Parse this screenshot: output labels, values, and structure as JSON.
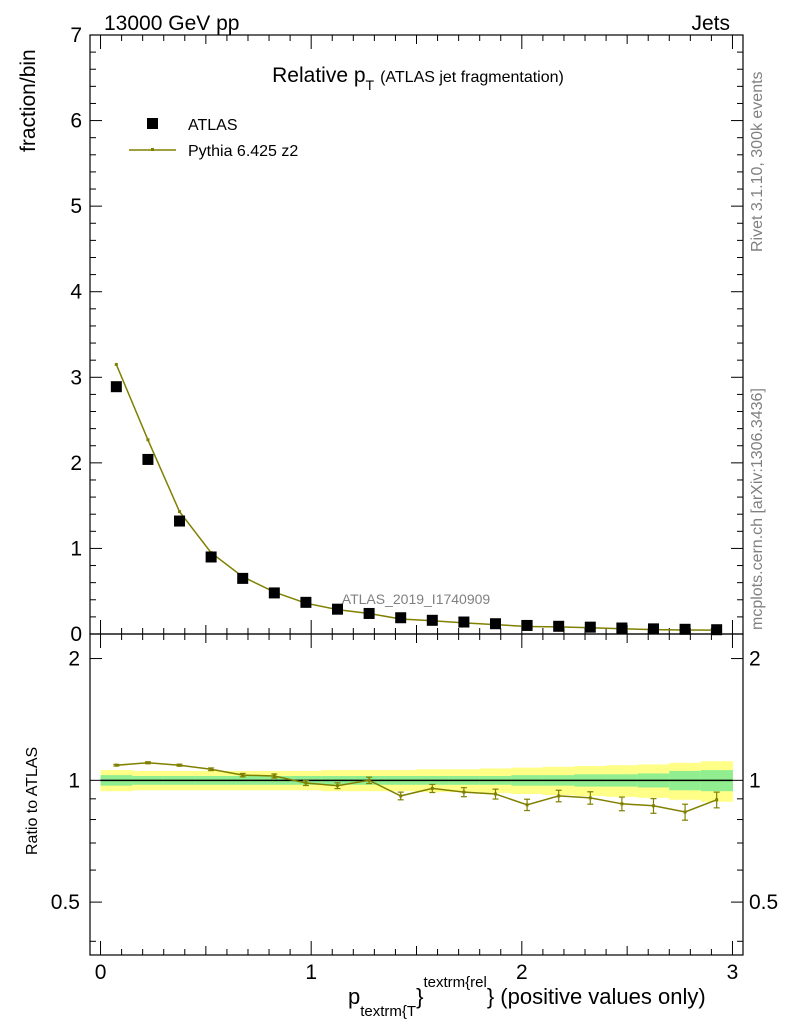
{
  "header": {
    "left": "13000 GeV pp",
    "right": "Jets"
  },
  "plot": {
    "title_main": "Relative p",
    "title_sub": "T",
    "title_rest": "(ATLAS jet fragmentation)",
    "ylabel": "fraction/bin",
    "analysis_tag": "ATLAS_2019_I1740909",
    "side_label_top": "Rivet 3.1.10,  300k events",
    "side_label_bottom": "mcplots.cern.ch [arXiv:1306.3436]",
    "legend": {
      "data_label": "ATLAS",
      "mc_label": "Pythia 6.425 z2"
    },
    "xlabel_p": "p",
    "xlabel_sub": "textrm{T",
    "xlabel_brace1": "}",
    "xlabel_sup": "textrm{rel",
    "xlabel_rest": "} (positive values only)",
    "ratio_ylabel": "Ratio to ATLAS"
  },
  "colors": {
    "mc": "#808000",
    "band_inner": "#90ee90",
    "band_outer": "#ffff88",
    "data": "#000000"
  },
  "chart_data": [
    {
      "type": "scatter",
      "title": "Relative pT (ATLAS jet fragmentation)",
      "ylabel": "fraction/bin",
      "xlim": [
        -0.05,
        3.05
      ],
      "ylim": [
        0,
        7
      ],
      "yticks": [
        0,
        1,
        2,
        3,
        4,
        5,
        6,
        7
      ],
      "legend_position": "top-left",
      "x": [
        0.075,
        0.225,
        0.375,
        0.525,
        0.675,
        0.825,
        0.975,
        1.125,
        1.275,
        1.425,
        1.575,
        1.725,
        1.875,
        2.025,
        2.175,
        2.325,
        2.475,
        2.625,
        2.775,
        2.925
      ],
      "series": [
        {
          "name": "ATLAS",
          "style": "markers",
          "values": [
            2.89,
            2.04,
            1.32,
            0.9,
            0.65,
            0.48,
            0.37,
            0.29,
            0.24,
            0.19,
            0.16,
            0.14,
            0.12,
            0.1,
            0.09,
            0.08,
            0.07,
            0.06,
            0.055,
            0.05
          ]
        },
        {
          "name": "Pythia 6.425 z2",
          "style": "line",
          "values": [
            3.15,
            2.27,
            1.43,
            0.95,
            0.67,
            0.49,
            0.36,
            0.285,
            0.24,
            0.175,
            0.155,
            0.13,
            0.11,
            0.088,
            0.083,
            0.073,
            0.062,
            0.052,
            0.047,
            0.046
          ]
        }
      ]
    },
    {
      "type": "line",
      "ylabel": "Ratio to ATLAS",
      "xlabel": "p_T^rel (positive values only)",
      "xlim": [
        -0.05,
        3.05
      ],
      "xticks": [
        0,
        1,
        2,
        3
      ],
      "ylim": [
        0.37,
        2.3
      ],
      "yticks": [
        0.5,
        1,
        2
      ],
      "log_y": true,
      "x": [
        0.075,
        0.225,
        0.375,
        0.525,
        0.675,
        0.825,
        0.975,
        1.125,
        1.275,
        1.425,
        1.575,
        1.725,
        1.875,
        2.025,
        2.175,
        2.325,
        2.475,
        2.625,
        2.775,
        2.925
      ],
      "series": [
        {
          "name": "Pythia 6.425 z2",
          "values": [
            1.09,
            1.105,
            1.09,
            1.065,
            1.03,
            1.025,
            0.985,
            0.97,
            1.0,
            0.915,
            0.955,
            0.935,
            0.925,
            0.87,
            0.915,
            0.905,
            0.875,
            0.865,
            0.835,
            0.895
          ],
          "errors": [
            0.005,
            0.006,
            0.006,
            0.008,
            0.01,
            0.012,
            0.014,
            0.016,
            0.018,
            0.02,
            0.022,
            0.024,
            0.026,
            0.028,
            0.03,
            0.032,
            0.034,
            0.036,
            0.038,
            0.04
          ]
        }
      ],
      "band_inner_halfwidth": [
        0.03,
        0.025,
        0.025,
        0.025,
        0.025,
        0.025,
        0.025,
        0.025,
        0.025,
        0.025,
        0.025,
        0.025,
        0.025,
        0.03,
        0.03,
        0.035,
        0.035,
        0.04,
        0.055,
        0.06
      ],
      "band_outer_halfwidth": [
        0.06,
        0.055,
        0.055,
        0.055,
        0.055,
        0.055,
        0.055,
        0.06,
        0.06,
        0.06,
        0.065,
        0.065,
        0.07,
        0.075,
        0.08,
        0.085,
        0.09,
        0.095,
        0.105,
        0.115
      ]
    }
  ]
}
